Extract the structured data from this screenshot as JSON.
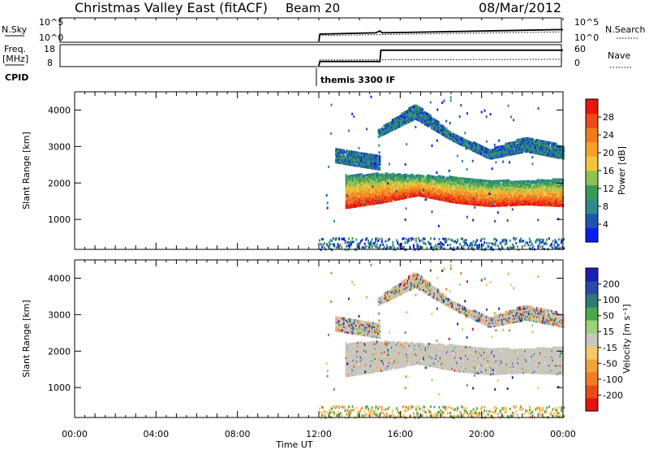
{
  "header": {
    "station": "Christmas Valley East (fitACF)",
    "beam": "Beam 20",
    "date": "08/Mar/2012"
  },
  "noise_panel": {
    "left_label": "N.Sky",
    "right_label": "N.Search",
    "y_ticks": [
      "10^5",
      "10^0"
    ]
  },
  "freq_panel": {
    "left_label_1": "Freq.",
    "left_label_2": "[MHz]",
    "left_ticks": [
      "18",
      "8"
    ],
    "right_label": "Nave",
    "right_ticks": [
      "60",
      "0"
    ]
  },
  "cpid": {
    "label": "CPID",
    "mode": "themis 3300 IF"
  },
  "chart_data": [
    {
      "type": "line",
      "panel": "noise",
      "series": [
        {
          "name": "N.Sky",
          "x": [
            12.0,
            12.05,
            14.8,
            15.0,
            15.1,
            24.0
          ],
          "values": [
            0,
            1.6,
            1.9,
            2.3,
            1.9,
            2.6
          ]
        },
        {
          "name": "N.Search",
          "x": [
            12.0,
            12.05,
            24.0
          ],
          "values": [
            0,
            1.3,
            2.1
          ]
        }
      ],
      "xlim": [
        0,
        24
      ],
      "ylim_label": [
        "10^0",
        "10^5"
      ]
    },
    {
      "type": "line",
      "panel": "freq_nave",
      "series": [
        {
          "name": "Freq.",
          "x": [
            12.0,
            12.05,
            15.0,
            15.05,
            24.0
          ],
          "values": [
            8,
            10.2,
            10.2,
            16.0,
            16.0
          ]
        },
        {
          "name": "Nave",
          "x": [
            12.0,
            12.05,
            24.0
          ],
          "values": [
            0,
            18,
            20
          ]
        }
      ],
      "xlim": [
        0,
        24
      ],
      "ylim_left": [
        8,
        18
      ],
      "ylim_right": [
        0,
        60
      ]
    },
    {
      "type": "heatmap",
      "panel": "power",
      "ylabel": "Slant Range [km]",
      "x_ticks": [
        "00:00",
        "04:00",
        "08:00",
        "12:00",
        "16:00",
        "20:00",
        "00:00"
      ],
      "y_ticks": [
        1000,
        2000,
        3000,
        4000
      ],
      "ylim": [
        180,
        4500
      ],
      "xlim": [
        0,
        24
      ],
      "colorbar": {
        "label": "Power [dB]",
        "ticks": [
          "4",
          "8",
          "12",
          "16",
          "20",
          "24",
          "28"
        ],
        "colors": [
          "#0a1cf0",
          "#1b55b0",
          "#2e8a8a",
          "#3a9a55",
          "#8ec34f",
          "#f2c53c",
          "#f4a228",
          "#f07a1c",
          "#ef4a17",
          "#e6150f"
        ]
      },
      "bands": [
        {
          "start": 13.3,
          "end": 24.0,
          "lower": [
            1350,
            1500,
            1700,
            1500,
            1400,
            1450,
            1400
          ],
          "upper": [
            2250,
            2300,
            2250,
            2200,
            2100,
            2100,
            2150
          ],
          "level": "high"
        },
        {
          "start": 14.9,
          "end": 24.0,
          "lower": [
            3300,
            3800,
            3200,
            2700,
            2900,
            2700
          ],
          "upper": [
            3500,
            4200,
            3400,
            2950,
            3300,
            3050
          ],
          "level": "low"
        },
        {
          "start": 12.8,
          "end": 15.0,
          "lower": [
            2600,
            2500,
            2400
          ],
          "upper": [
            3000,
            2900,
            2800
          ],
          "level": "low"
        }
      ]
    },
    {
      "type": "heatmap",
      "panel": "velocity",
      "ylabel": "Slant Range [km]",
      "xlabel": "Time UT",
      "x_ticks": [
        "00:00",
        "04:00",
        "08:00",
        "12:00",
        "16:00",
        "20:00",
        "00:00"
      ],
      "y_ticks": [
        1000,
        2000,
        3000,
        4000
      ],
      "ylim": [
        180,
        4500
      ],
      "xlim": [
        0,
        24
      ],
      "colorbar": {
        "label": "Velocity [m s⁻¹]",
        "ticks": [
          "200",
          "100",
          "50",
          "15",
          "-15",
          "-50",
          "-100",
          "-200"
        ],
        "colors": [
          "#1a1fb4",
          "#2a4aa8",
          "#2f7a74",
          "#49a84c",
          "#9dd07a",
          "#c9c6bf",
          "#f5c86a",
          "#f3a33a",
          "#f07d21",
          "#ea4a17",
          "#e3140f"
        ]
      }
    }
  ]
}
